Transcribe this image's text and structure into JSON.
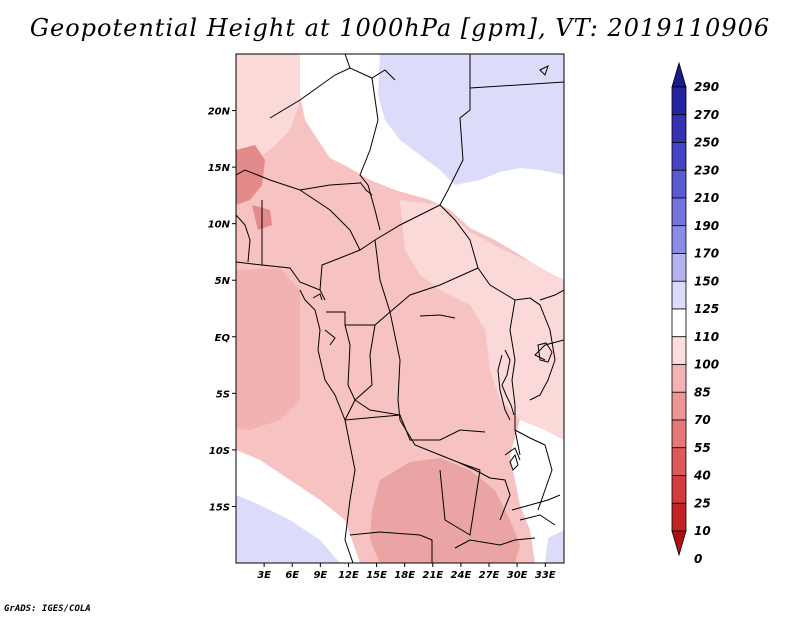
{
  "title": "Geopotential Height at 1000hPa [gpm], VT: 2019110906",
  "credit": "GrADS: IGES/COLA",
  "map": {
    "region": "Central and southern Africa",
    "lon_range": [
      0,
      35
    ],
    "lat_range": [
      -20,
      25
    ],
    "lat_ticks": [
      {
        "lat": 20,
        "label": "20N"
      },
      {
        "lat": 15,
        "label": "15N"
      },
      {
        "lat": 10,
        "label": "10N"
      },
      {
        "lat": 5,
        "label": "5N"
      },
      {
        "lat": 0,
        "label": "EQ"
      },
      {
        "lat": -5,
        "label": "5S"
      },
      {
        "lat": -10,
        "label": "10S"
      },
      {
        "lat": -15,
        "label": "15S"
      }
    ],
    "lon_ticks": [
      {
        "lon": 3,
        "label": "3E"
      },
      {
        "lon": 6,
        "label": "6E"
      },
      {
        "lon": 9,
        "label": "9E"
      },
      {
        "lon": 12,
        "label": "12E"
      },
      {
        "lon": 15,
        "label": "15E"
      },
      {
        "lon": 18,
        "label": "18E"
      },
      {
        "lon": 21,
        "label": "21E"
      },
      {
        "lon": 24,
        "label": "24E"
      },
      {
        "lon": 27,
        "label": "27E"
      },
      {
        "lon": 30,
        "label": "30E"
      },
      {
        "lon": 33,
        "label": "33E"
      }
    ]
  },
  "colorbar": {
    "levels": [
      "290",
      "270",
      "250",
      "230",
      "210",
      "190",
      "170",
      "150",
      "125",
      "110",
      "100",
      "85",
      "70",
      "55",
      "40",
      "25",
      "10",
      "0"
    ],
    "colors": [
      "#1a1a8c",
      "#2424a0",
      "#3333b3",
      "#4444c4",
      "#5a5ad2",
      "#7373de",
      "#8c8ce8",
      "#b4b4f2",
      "#dcdcfa",
      "#ffffff",
      "#fcdcdc",
      "#f5b4b4",
      "#ed9696",
      "#e57878",
      "#dc5a5a",
      "#d23c3c",
      "#c22424",
      "#b01010"
    ]
  }
}
